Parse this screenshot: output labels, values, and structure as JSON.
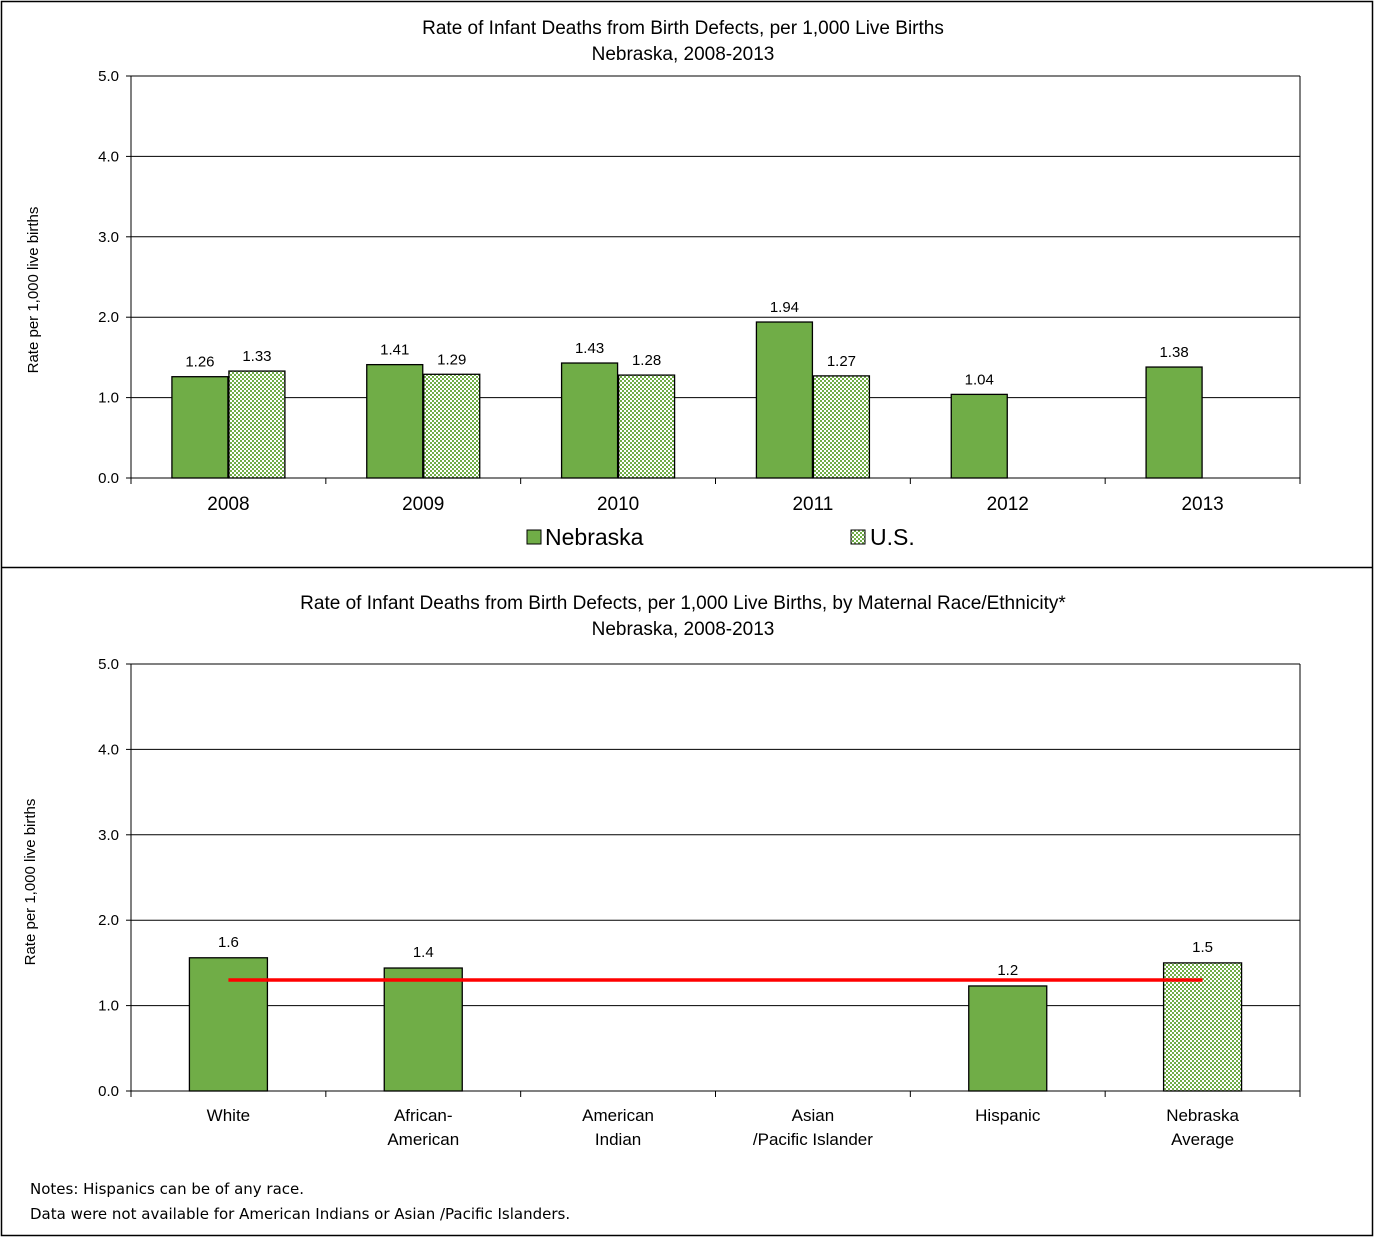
{
  "colors": {
    "nebraska": "#70ad47",
    "us_pattern": "#70ad47",
    "reference_line": "#ff0000",
    "grid": "#000000"
  },
  "chart_data": [
    {
      "type": "bar",
      "title": "Rate of Infant Deaths from Birth Defects, per 1,000  Live Births",
      "subtitle": "Nebraska, 2008-2013",
      "ylabel": "Rate per 1,000 live births",
      "xlabel": "",
      "ylim": [
        0,
        5
      ],
      "yticks": [
        "0.0",
        "1.0",
        "2.0",
        "3.0",
        "4.0",
        "5.0"
      ],
      "grid": true,
      "legend_position": "bottom",
      "categories": [
        "2008",
        "2009",
        "2010",
        "2011",
        "2012",
        "2013"
      ],
      "series": [
        {
          "name": "Nebraska",
          "style": "solid",
          "values": [
            1.26,
            1.41,
            1.43,
            1.94,
            1.04,
            1.38
          ],
          "labels": [
            "1.26",
            "1.41",
            "1.43",
            "1.94",
            "1.04",
            "1.38"
          ]
        },
        {
          "name": "U.S.",
          "style": "dotted",
          "values": [
            1.33,
            1.29,
            1.28,
            1.27,
            null,
            null
          ],
          "labels": [
            "1.33",
            "1.29",
            "1.28",
            "1.27",
            "",
            ""
          ]
        }
      ]
    },
    {
      "type": "bar",
      "title": "Rate of Infant Deaths from Birth Defects, per 1,000  Live Births, by Maternal Race/Ethnicity*",
      "subtitle": "Nebraska, 2008-2013",
      "ylabel": "Rate per 1,000 live births",
      "xlabel": "",
      "ylim": [
        0,
        5
      ],
      "yticks": [
        "0.0",
        "1.0",
        "2.0",
        "3.0",
        "4.0",
        "5.0"
      ],
      "grid": true,
      "categories": [
        [
          "White"
        ],
        [
          "African-",
          "American"
        ],
        [
          "American",
          "Indian"
        ],
        [
          "Asian",
          "/Pacific Islander"
        ],
        [
          "Hispanic"
        ],
        [
          "Nebraska",
          "Average"
        ]
      ],
      "values": [
        1.56,
        1.44,
        null,
        null,
        1.23,
        1.5
      ],
      "labels": [
        "1.6",
        "1.4",
        "",
        "",
        "1.2",
        "1.5"
      ],
      "styles": [
        "solid",
        "solid",
        "solid",
        "solid",
        "solid",
        "dotted"
      ],
      "reference_line": {
        "value": 1.3
      }
    }
  ],
  "notes": [
    "Notes: Hispanics can be of any race.",
    "Data were not available for American Indians or Asian /Pacific Islanders."
  ]
}
